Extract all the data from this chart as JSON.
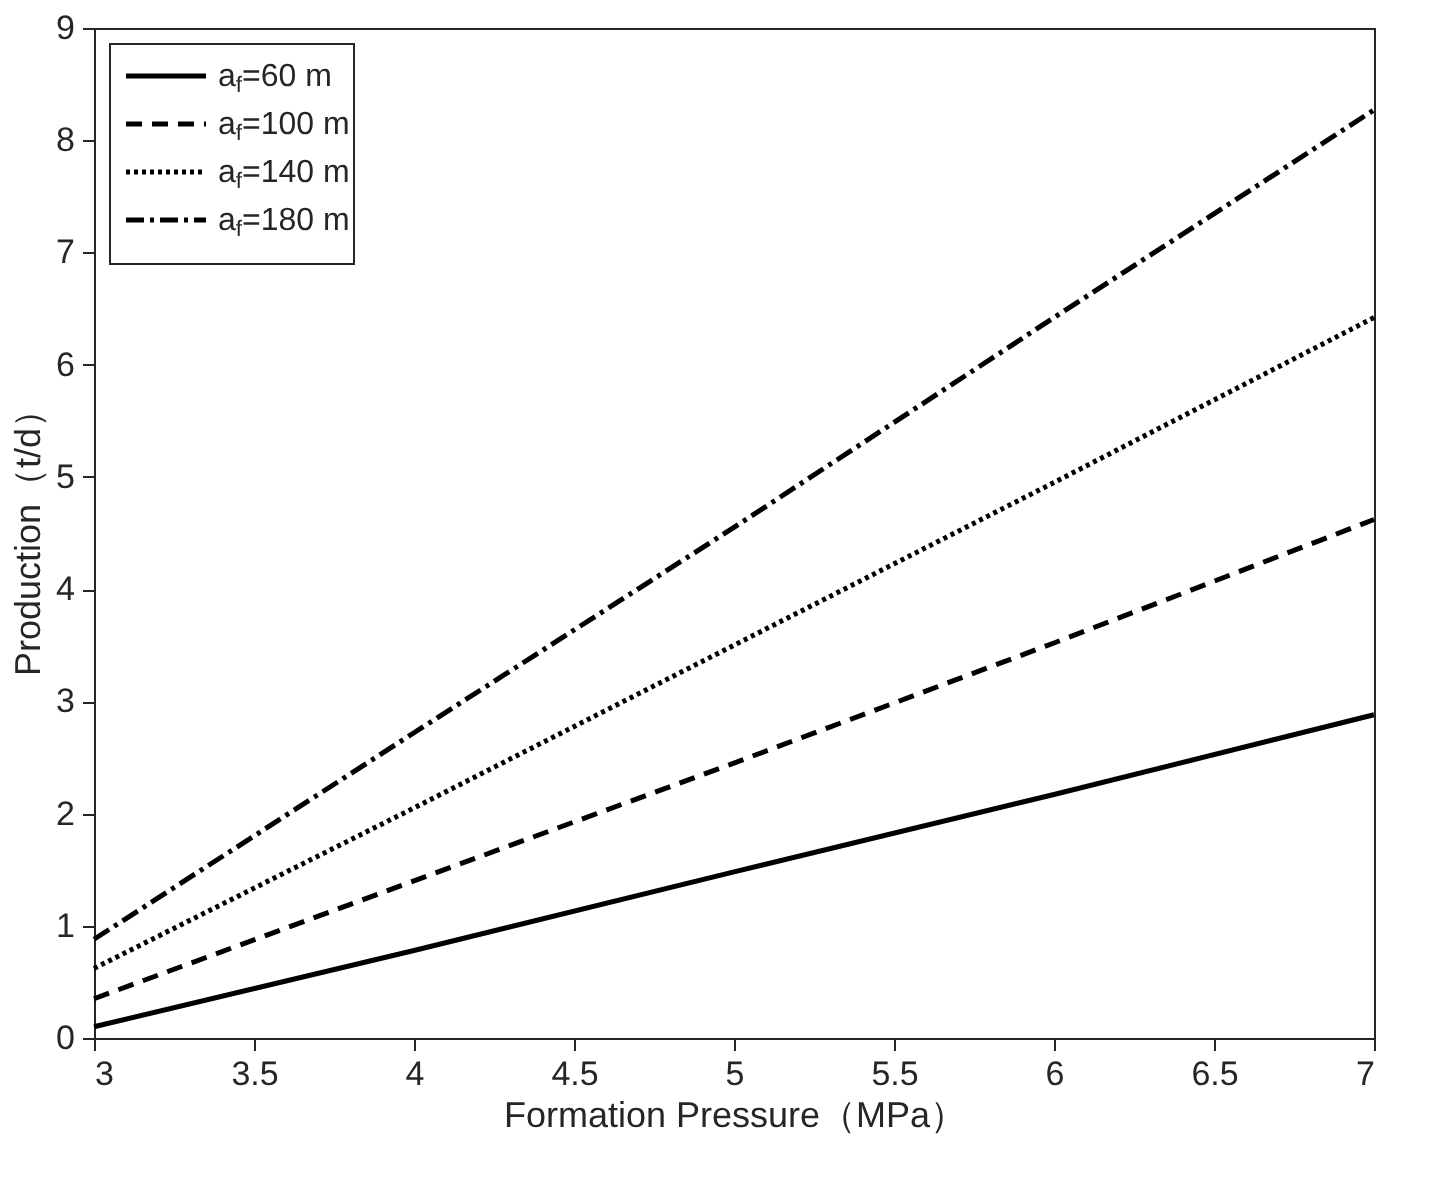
{
  "chart_data": {
    "type": "line",
    "xlabel": "Formation Pressure（MPa）",
    "ylabel": "Production（t/d）",
    "x": [
      3,
      4,
      5,
      6,
      7
    ],
    "xlim": [
      3,
      7
    ],
    "xticks": [
      3,
      3.5,
      4,
      4.5,
      5,
      5.5,
      6,
      6.5,
      7
    ],
    "ylim": [
      0,
      9
    ],
    "yticks": [
      0,
      1,
      2,
      3,
      4,
      5,
      6,
      7,
      8,
      9
    ],
    "grid": false,
    "legend": "top left",
    "marker": "none",
    "series": [
      {
        "name": "a$_{f}$=60 m",
        "color": "#000000",
        "line_style": "solid",
        "values": [
          0.1,
          0.78,
          1.48,
          2.17,
          2.88
        ]
      },
      {
        "name": "a$_{f}$=100 m",
        "color": "#000000",
        "line_style": "dashed",
        "values": [
          0.35,
          1.4,
          2.45,
          3.52,
          4.62
        ]
      },
      {
        "name": "a$_{f}$=140 m",
        "color": "#000000",
        "line_style": "dotted",
        "values": [
          0.62,
          2.05,
          3.5,
          4.95,
          6.42
        ]
      },
      {
        "name": "a$_{f}$=180 m",
        "color": "#000000",
        "line_style": "dashdot",
        "values": [
          0.88,
          2.72,
          4.55,
          6.42,
          8.27
        ]
      }
    ]
  }
}
